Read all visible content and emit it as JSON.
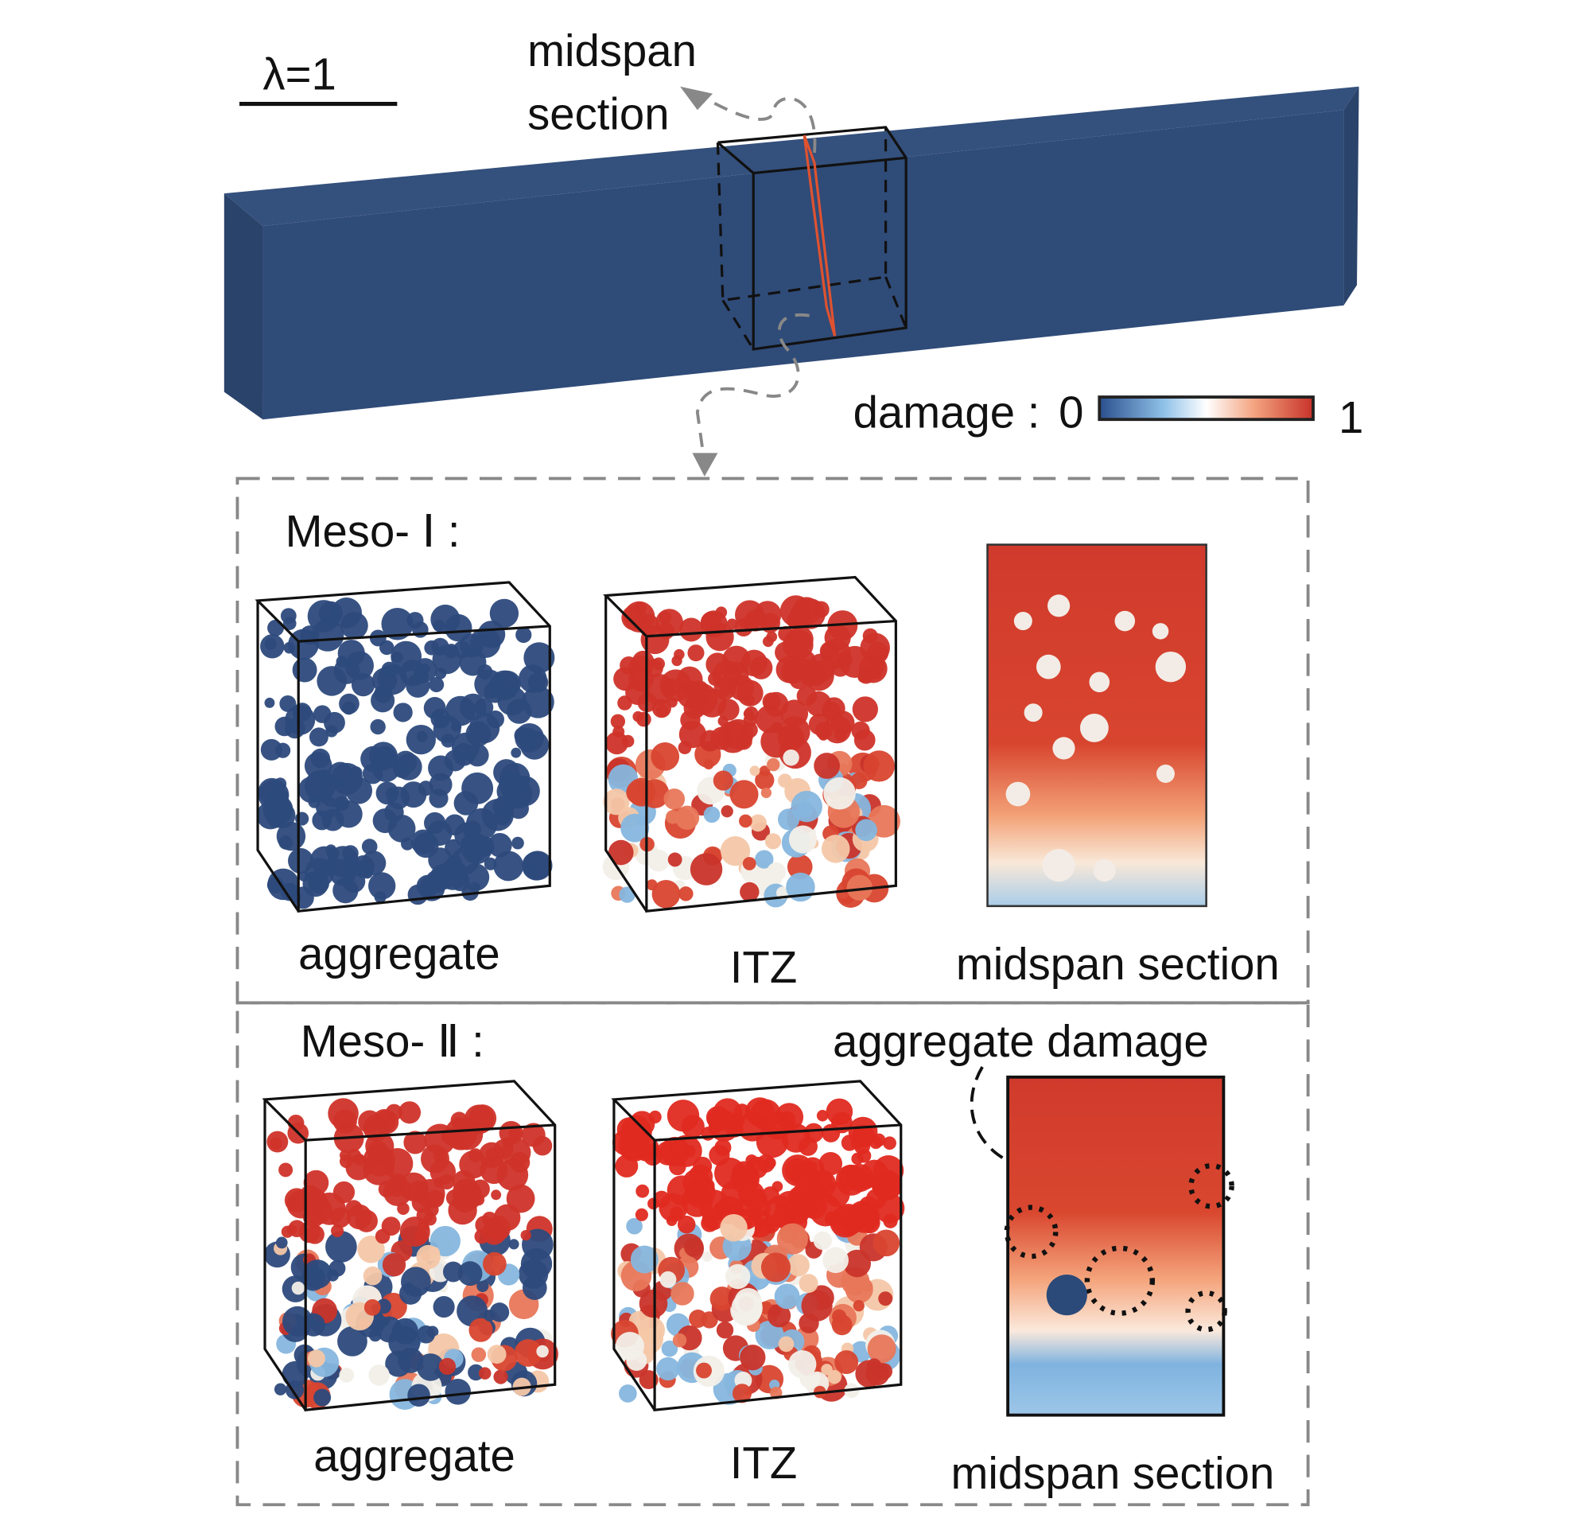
{
  "header": {
    "lambda": "λ=1",
    "midspan_label": [
      "midspan",
      "section"
    ]
  },
  "colorbar": {
    "label": "damage :",
    "min": "0",
    "max": "1"
  },
  "panels": [
    {
      "title": "Meso- Ⅰ :",
      "captions": [
        "aggregate",
        "ITZ",
        "midspan section"
      ]
    },
    {
      "title": "Meso- Ⅱ :",
      "annotation": "aggregate damage",
      "captions": [
        "aggregate",
        "ITZ",
        "midspan section"
      ]
    }
  ]
}
